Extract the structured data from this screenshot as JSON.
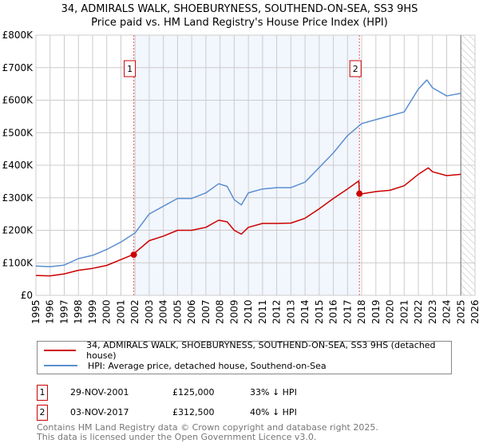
{
  "title": {
    "line1": "34, ADMIRALS WALK, SHOEBURYNESS, SOUTHEND-ON-SEA, SS3 9HS",
    "line2": "Price paid vs. HM Land Registry's House Price Index (HPI)"
  },
  "chart_data": {
    "type": "line",
    "title": "Price paid vs. HM Land Registry's House Price Index (HPI)",
    "xlim": [
      1995,
      2026
    ],
    "ylim": [
      0,
      800000
    ],
    "x_ticks": [
      "1995",
      "1996",
      "1997",
      "1998",
      "1999",
      "2000",
      "2001",
      "2002",
      "2003",
      "2004",
      "2005",
      "2006",
      "2007",
      "2008",
      "2009",
      "2010",
      "2011",
      "2012",
      "2013",
      "2014",
      "2015",
      "2016",
      "2017",
      "2018",
      "2019",
      "2020",
      "2021",
      "2022",
      "2023",
      "2024",
      "2025",
      "2026"
    ],
    "y_ticks": [
      {
        "value": 0,
        "label": "£0"
      },
      {
        "value": 100000,
        "label": "£100K"
      },
      {
        "value": 200000,
        "label": "£200K"
      },
      {
        "value": 300000,
        "label": "£300K"
      },
      {
        "value": 400000,
        "label": "£400K"
      },
      {
        "value": 500000,
        "label": "£500K"
      },
      {
        "value": 600000,
        "label": "£600K"
      },
      {
        "value": 700000,
        "label": "£700K"
      },
      {
        "value": 800000,
        "label": "£800K"
      }
    ],
    "grid": true,
    "legend_placement": "below",
    "series": [
      {
        "name": "34, ADMIRALS WALK, SHOEBURYNESS, SOUTHEND-ON-SEA, SS3 9HS (detached house)",
        "color": "#cc0000",
        "points": [
          [
            1995,
            61000
          ],
          [
            1996,
            60000
          ],
          [
            1997,
            66000
          ],
          [
            1998,
            77000
          ],
          [
            1999,
            83000
          ],
          [
            2000,
            92000
          ],
          [
            2001,
            110000
          ],
          [
            2001.84,
            125000
          ],
          [
            2002,
            131000
          ],
          [
            2003,
            168000
          ],
          [
            2004,
            182000
          ],
          [
            2005,
            200000
          ],
          [
            2006,
            200000
          ],
          [
            2007,
            209000
          ],
          [
            2007.9,
            231000
          ],
          [
            2008.5,
            226000
          ],
          [
            2009,
            200000
          ],
          [
            2009.5,
            188000
          ],
          [
            2010,
            209000
          ],
          [
            2011,
            221000
          ],
          [
            2012,
            221000
          ],
          [
            2013,
            222000
          ],
          [
            2014,
            237000
          ],
          [
            2015,
            266000
          ],
          [
            2016,
            298000
          ],
          [
            2017,
            327000
          ],
          [
            2017.8,
            352000
          ],
          [
            2017.84,
            312500
          ],
          [
            2018,
            312000
          ],
          [
            2019,
            319000
          ],
          [
            2020,
            323000
          ],
          [
            2021,
            337000
          ],
          [
            2022,
            372000
          ],
          [
            2022.7,
            392000
          ],
          [
            2023,
            380000
          ],
          [
            2024,
            368000
          ],
          [
            2025,
            372000
          ]
        ]
      },
      {
        "name": "HPI: Average price, detached house, Southend-on-Sea",
        "color": "#5b8fd0",
        "points": [
          [
            1995,
            90000
          ],
          [
            1996,
            88000
          ],
          [
            1997,
            93000
          ],
          [
            1998,
            113000
          ],
          [
            1999,
            123000
          ],
          [
            2000,
            141000
          ],
          [
            2001,
            164000
          ],
          [
            2002,
            192000
          ],
          [
            2003,
            250000
          ],
          [
            2004,
            274000
          ],
          [
            2005,
            298000
          ],
          [
            2006,
            298000
          ],
          [
            2007,
            315000
          ],
          [
            2007.9,
            343000
          ],
          [
            2008.5,
            335000
          ],
          [
            2009,
            294000
          ],
          [
            2009.5,
            278000
          ],
          [
            2010,
            315000
          ],
          [
            2011,
            327000
          ],
          [
            2012,
            331000
          ],
          [
            2013,
            331000
          ],
          [
            2014,
            348000
          ],
          [
            2015,
            393000
          ],
          [
            2016,
            438000
          ],
          [
            2017,
            491000
          ],
          [
            2018,
            528000
          ],
          [
            2019,
            540000
          ],
          [
            2020,
            552000
          ],
          [
            2021,
            564000
          ],
          [
            2022,
            634000
          ],
          [
            2022.6,
            662000
          ],
          [
            2023,
            638000
          ],
          [
            2024,
            613000
          ],
          [
            2025,
            621000
          ]
        ]
      }
    ],
    "sales": [
      {
        "id": "1",
        "x": 2001.91,
        "date": "29-NOV-2001",
        "price": "£125,000",
        "value": 125000,
        "hpi": "33% ↓ HPI"
      },
      {
        "id": "2",
        "x": 2017.84,
        "date": "03-NOV-2017",
        "price": "£312,500",
        "value": 312500,
        "hpi": "40% ↓ HPI"
      }
    ],
    "shaded_range": [
      2001.91,
      2017.84
    ],
    "forecast_hatch_from": 2025.0
  },
  "legend": {
    "property": "34, ADMIRALS WALK, SHOEBURYNESS, SOUTHEND-ON-SEA, SS3 9HS (detached house)",
    "hpi": "HPI: Average price, detached house, Southend-on-Sea"
  },
  "footer": {
    "line1": "Contains HM Land Registry data © Crown copyright and database right 2025.",
    "line2": "This data is licensed under the Open Government Licence v3.0."
  }
}
